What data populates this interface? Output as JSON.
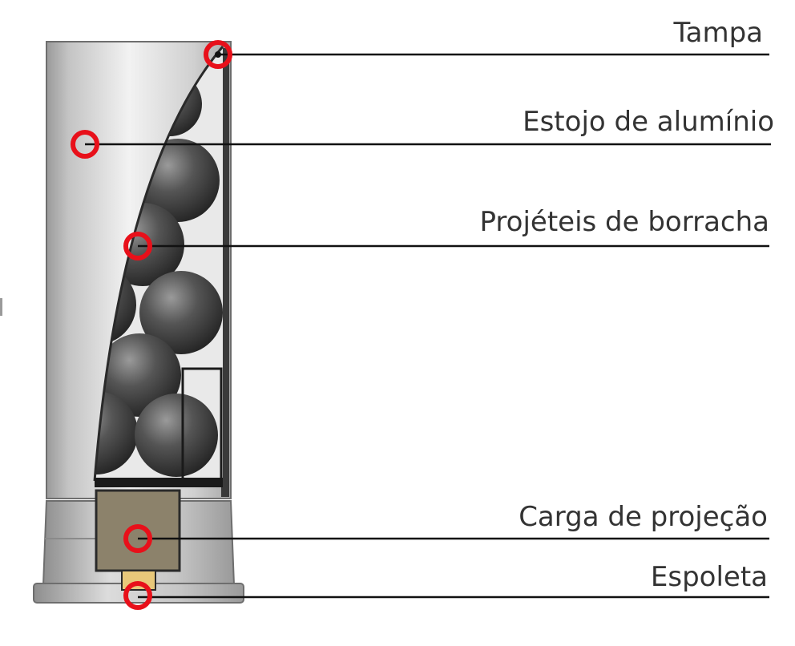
{
  "callouts": [
    {
      "id": "tampa",
      "label": "Tampa"
    },
    {
      "id": "estojo",
      "label": "Estojo de alumínio"
    },
    {
      "id": "projeteis",
      "label": "Projéteis de borracha"
    },
    {
      "id": "carga",
      "label": "Carga de projeção"
    },
    {
      "id": "espoleta",
      "label": "Espoleta"
    }
  ],
  "colors": {
    "marker": "#e8101a",
    "leader_line": "#111111",
    "label_text": "#333333",
    "casing": "#c9c9c9",
    "propellant": "#8c826b",
    "primer": "#e8c87a",
    "ball": "#4a4a4a"
  }
}
